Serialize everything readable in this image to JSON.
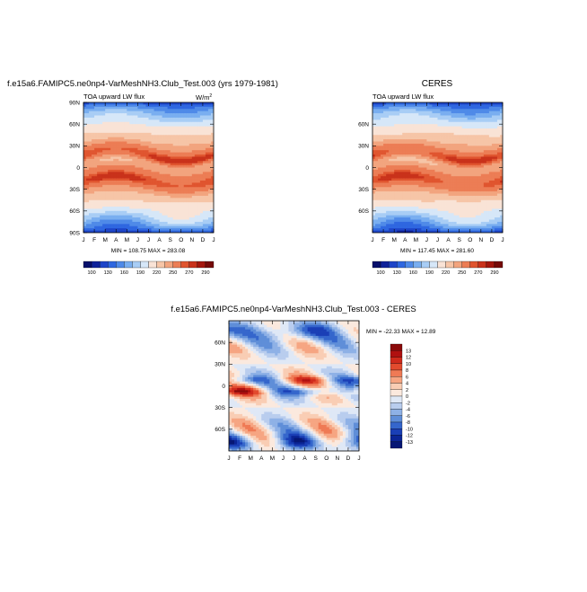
{
  "titles": {
    "model": "f.e15a6.FAMIPC5.ne0np4-VarMeshNH3.Club_Test.003 (yrs 1979-1981)",
    "obs": "CERES",
    "diff": "f.e15a6.FAMIPC5.ne0np4-VarMeshNH3.Club_Test.003 - CERES"
  },
  "chart_data": [
    {
      "type": "heatmap",
      "name": "model",
      "subtitle": "TOA upward LW flux",
      "units": "W/m",
      "units_sup": "2",
      "minmax": "MIN = 108.75  MAX = 283.08",
      "month_labels": [
        "J",
        "F",
        "M",
        "A",
        "M",
        "J",
        "J",
        "A",
        "S",
        "O",
        "N",
        "D",
        "J"
      ],
      "lat_labels": [
        "90N",
        "60N",
        "30N",
        "0",
        "30S",
        "60S",
        "90S"
      ],
      "lat_values": [
        90,
        60,
        30,
        0,
        -30,
        -60,
        -90
      ],
      "ylim": [
        -90,
        90
      ],
      "levels": [
        100,
        115,
        130,
        145,
        160,
        175,
        190,
        205,
        220,
        235,
        250,
        265,
        270,
        280,
        290
      ],
      "colorbar_labels": [
        "100",
        "130",
        "160",
        "190",
        "220",
        "250",
        "270",
        "290"
      ],
      "colors": [
        "#08106b",
        "#10239a",
        "#1e45c8",
        "#2f67e0",
        "#4f8ae8",
        "#79aef0",
        "#a8cdf5",
        "#d6e7f8",
        "#f9e3d6",
        "#f6c5a7",
        "#f2a47e",
        "#ec7d55",
        "#e0552f",
        "#c9321b",
        "#a3160d",
        "#750a08"
      ]
    },
    {
      "type": "heatmap",
      "name": "obs",
      "subtitle": "TOA upward LW flux",
      "units": "",
      "minmax": "MIN = 117.45  MAX = 281.60",
      "month_labels": [
        "J",
        "F",
        "M",
        "A",
        "M",
        "J",
        "J",
        "A",
        "S",
        "O",
        "N",
        "D",
        "J"
      ],
      "lat_labels": [
        "60N",
        "30N",
        "0",
        "30S",
        "60S"
      ],
      "lat_values": [
        60,
        30,
        0,
        -30,
        -60
      ],
      "ylim": [
        -90,
        90
      ],
      "levels": [
        100,
        115,
        130,
        145,
        160,
        175,
        190,
        205,
        220,
        235,
        250,
        265,
        270,
        280,
        290
      ],
      "colorbar_labels": [
        "100",
        "130",
        "160",
        "190",
        "220",
        "250",
        "270",
        "290"
      ],
      "colors": [
        "#08106b",
        "#10239a",
        "#1e45c8",
        "#2f67e0",
        "#4f8ae8",
        "#79aef0",
        "#a8cdf5",
        "#d6e7f8",
        "#f9e3d6",
        "#f6c5a7",
        "#f2a47e",
        "#ec7d55",
        "#e0552f",
        "#c9321b",
        "#a3160d",
        "#750a08"
      ]
    },
    {
      "type": "heatmap",
      "name": "diff",
      "minmax": "MIN = -22.33  MAX =  12.89",
      "month_labels": [
        "J",
        "F",
        "M",
        "A",
        "M",
        "J",
        "J",
        "A",
        "S",
        "O",
        "N",
        "D",
        "J"
      ],
      "lat_labels": [
        "60N",
        "30N",
        "0",
        "30S",
        "60S"
      ],
      "lat_values": [
        60,
        30,
        0,
        -30,
        -60
      ],
      "ylim": [
        -90,
        90
      ],
      "levels": [
        13,
        12,
        10,
        8,
        6,
        4,
        2,
        0,
        -2,
        -4,
        -6,
        -8,
        -10,
        -12,
        -13
      ],
      "colorbar_labels": [
        "13",
        "12",
        "10",
        "8",
        "6",
        "4",
        "2",
        "0",
        "-2",
        "-4",
        "-6",
        "-8",
        "-10",
        "-12",
        "-13"
      ],
      "colors": [
        "#8b0a0a",
        "#b01010",
        "#cf2a1c",
        "#e24b2e",
        "#ef7a55",
        "#f6a582",
        "#f9cdb4",
        "#fbe9de",
        "#dfe8f6",
        "#b9cdee",
        "#8eb1e6",
        "#5f8ed8",
        "#3566cc",
        "#1a3fb6",
        "#0b2596",
        "#061775"
      ]
    }
  ]
}
